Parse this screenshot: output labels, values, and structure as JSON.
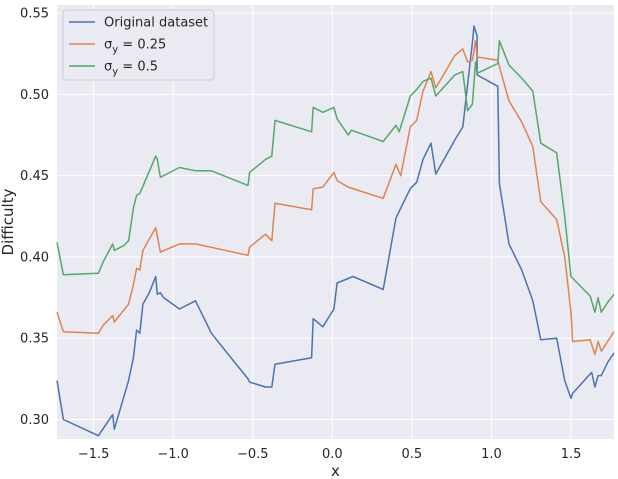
{
  "chart_data": {
    "type": "line",
    "title": "",
    "xlabel": "x",
    "ylabel": "Difficulty",
    "xlim": [
      -1.73,
      1.77
    ],
    "ylim": [
      0.288,
      0.555
    ],
    "xticks": [
      -1.5,
      -1.0,
      -0.5,
      0.0,
      0.5,
      1.0,
      1.5
    ],
    "xtick_labels": [
      "−1.5",
      "−1.0",
      "−0.5",
      "0.0",
      "0.5",
      "1.0",
      "1.5"
    ],
    "yticks": [
      0.3,
      0.35,
      0.4,
      0.45,
      0.5,
      0.55
    ],
    "ytick_labels": [
      "0.30",
      "0.35",
      "0.40",
      "0.45",
      "0.50",
      "0.55"
    ],
    "grid": true,
    "background": "#eaeaf2",
    "legend_position": "top-left",
    "series": [
      {
        "name": "Original dataset",
        "color": "#4c72b0",
        "points": [
          [
            -1.73,
            0.324
          ],
          [
            -1.69,
            0.3
          ],
          [
            -1.47,
            0.29
          ],
          [
            -1.38,
            0.303
          ],
          [
            -1.37,
            0.294
          ],
          [
            -1.28,
            0.324
          ],
          [
            -1.25,
            0.338
          ],
          [
            -1.23,
            0.355
          ],
          [
            -1.21,
            0.353
          ],
          [
            -1.19,
            0.371
          ],
          [
            -1.15,
            0.378
          ],
          [
            -1.11,
            0.388
          ],
          [
            -1.1,
            0.377
          ],
          [
            -1.08,
            0.378
          ],
          [
            -1.06,
            0.375
          ],
          [
            -0.96,
            0.368
          ],
          [
            -0.86,
            0.373
          ],
          [
            -0.76,
            0.353
          ],
          [
            -0.53,
            0.325
          ],
          [
            -0.52,
            0.323
          ],
          [
            -0.42,
            0.32
          ],
          [
            -0.38,
            0.32
          ],
          [
            -0.36,
            0.334
          ],
          [
            -0.13,
            0.338
          ],
          [
            -0.12,
            0.362
          ],
          [
            -0.06,
            0.357
          ],
          [
            0.01,
            0.368
          ],
          [
            0.03,
            0.384
          ],
          [
            0.13,
            0.388
          ],
          [
            0.32,
            0.38
          ],
          [
            0.4,
            0.424
          ],
          [
            0.43,
            0.43
          ],
          [
            0.49,
            0.442
          ],
          [
            0.53,
            0.446
          ],
          [
            0.57,
            0.46
          ],
          [
            0.62,
            0.47
          ],
          [
            0.65,
            0.451
          ],
          [
            0.77,
            0.472
          ],
          [
            0.82,
            0.48
          ],
          [
            0.88,
            0.532
          ],
          [
            0.89,
            0.542
          ],
          [
            0.91,
            0.536
          ],
          [
            0.91,
            0.512
          ],
          [
            1.04,
            0.505
          ],
          [
            1.05,
            0.445
          ],
          [
            1.11,
            0.408
          ],
          [
            1.19,
            0.392
          ],
          [
            1.26,
            0.373
          ],
          [
            1.31,
            0.349
          ],
          [
            1.41,
            0.35
          ],
          [
            1.46,
            0.324
          ],
          [
            1.5,
            0.313
          ],
          [
            1.51,
            0.316
          ],
          [
            1.62,
            0.328
          ],
          [
            1.63,
            0.329
          ],
          [
            1.65,
            0.32
          ],
          [
            1.67,
            0.327
          ],
          [
            1.69,
            0.327
          ],
          [
            1.73,
            0.335
          ],
          [
            1.77,
            0.341
          ]
        ]
      },
      {
        "name": "σ_y = 0.25",
        "label_prefix": "σ",
        "label_subscript": "y",
        "label_suffix": " = 0.25",
        "color": "#dd8452",
        "points": [
          [
            -1.73,
            0.366
          ],
          [
            -1.69,
            0.354
          ],
          [
            -1.47,
            0.353
          ],
          [
            -1.44,
            0.358
          ],
          [
            -1.38,
            0.364
          ],
          [
            -1.37,
            0.36
          ],
          [
            -1.28,
            0.371
          ],
          [
            -1.25,
            0.383
          ],
          [
            -1.23,
            0.393
          ],
          [
            -1.21,
            0.392
          ],
          [
            -1.19,
            0.404
          ],
          [
            -1.11,
            0.418
          ],
          [
            -1.08,
            0.403
          ],
          [
            -0.96,
            0.408
          ],
          [
            -0.86,
            0.408
          ],
          [
            -0.53,
            0.401
          ],
          [
            -0.52,
            0.406
          ],
          [
            -0.42,
            0.414
          ],
          [
            -0.38,
            0.41
          ],
          [
            -0.36,
            0.433
          ],
          [
            -0.13,
            0.429
          ],
          [
            -0.12,
            0.442
          ],
          [
            -0.06,
            0.443
          ],
          [
            0.01,
            0.452
          ],
          [
            0.03,
            0.447
          ],
          [
            0.1,
            0.443
          ],
          [
            0.32,
            0.436
          ],
          [
            0.4,
            0.457
          ],
          [
            0.43,
            0.45
          ],
          [
            0.49,
            0.48
          ],
          [
            0.53,
            0.484
          ],
          [
            0.57,
            0.502
          ],
          [
            0.62,
            0.514
          ],
          [
            0.65,
            0.504
          ],
          [
            0.77,
            0.524
          ],
          [
            0.82,
            0.528
          ],
          [
            0.85,
            0.52
          ],
          [
            0.88,
            0.521
          ],
          [
            0.9,
            0.533
          ],
          [
            0.91,
            0.523
          ],
          [
            1.04,
            0.521
          ],
          [
            1.05,
            0.517
          ],
          [
            1.11,
            0.496
          ],
          [
            1.19,
            0.483
          ],
          [
            1.26,
            0.468
          ],
          [
            1.31,
            0.434
          ],
          [
            1.41,
            0.423
          ],
          [
            1.46,
            0.4
          ],
          [
            1.5,
            0.366
          ],
          [
            1.51,
            0.348
          ],
          [
            1.62,
            0.349
          ],
          [
            1.65,
            0.34
          ],
          [
            1.67,
            0.348
          ],
          [
            1.69,
            0.342
          ],
          [
            1.73,
            0.348
          ],
          [
            1.77,
            0.354
          ]
        ]
      },
      {
        "name": "σ_y = 0.5",
        "label_prefix": "σ",
        "label_subscript": "y",
        "label_suffix": " = 0.5",
        "color": "#55a868",
        "points": [
          [
            -1.73,
            0.409
          ],
          [
            -1.69,
            0.389
          ],
          [
            -1.47,
            0.39
          ],
          [
            -1.44,
            0.397
          ],
          [
            -1.38,
            0.408
          ],
          [
            -1.37,
            0.404
          ],
          [
            -1.31,
            0.407
          ],
          [
            -1.28,
            0.41
          ],
          [
            -1.25,
            0.43
          ],
          [
            -1.23,
            0.438
          ],
          [
            -1.21,
            0.439
          ],
          [
            -1.11,
            0.462
          ],
          [
            -1.1,
            0.46
          ],
          [
            -1.08,
            0.449
          ],
          [
            -1.04,
            0.451
          ],
          [
            -0.96,
            0.455
          ],
          [
            -0.86,
            0.453
          ],
          [
            -0.76,
            0.453
          ],
          [
            -0.53,
            0.444
          ],
          [
            -0.52,
            0.452
          ],
          [
            -0.42,
            0.46
          ],
          [
            -0.38,
            0.462
          ],
          [
            -0.36,
            0.484
          ],
          [
            -0.13,
            0.477
          ],
          [
            -0.12,
            0.492
          ],
          [
            -0.06,
            0.489
          ],
          [
            0.01,
            0.492
          ],
          [
            0.03,
            0.485
          ],
          [
            0.1,
            0.475
          ],
          [
            0.12,
            0.478
          ],
          [
            0.32,
            0.471
          ],
          [
            0.4,
            0.481
          ],
          [
            0.42,
            0.477
          ],
          [
            0.49,
            0.499
          ],
          [
            0.53,
            0.503
          ],
          [
            0.57,
            0.508
          ],
          [
            0.62,
            0.51
          ],
          [
            0.65,
            0.499
          ],
          [
            0.77,
            0.512
          ],
          [
            0.82,
            0.514
          ],
          [
            0.85,
            0.49
          ],
          [
            0.88,
            0.494
          ],
          [
            0.9,
            0.52
          ],
          [
            0.91,
            0.513
          ],
          [
            1.04,
            0.519
          ],
          [
            1.05,
            0.533
          ],
          [
            1.11,
            0.518
          ],
          [
            1.19,
            0.51
          ],
          [
            1.26,
            0.502
          ],
          [
            1.31,
            0.47
          ],
          [
            1.41,
            0.464
          ],
          [
            1.46,
            0.425
          ],
          [
            1.5,
            0.388
          ],
          [
            1.62,
            0.376
          ],
          [
            1.65,
            0.366
          ],
          [
            1.67,
            0.375
          ],
          [
            1.69,
            0.366
          ],
          [
            1.73,
            0.372
          ],
          [
            1.77,
            0.377
          ]
        ]
      }
    ]
  }
}
